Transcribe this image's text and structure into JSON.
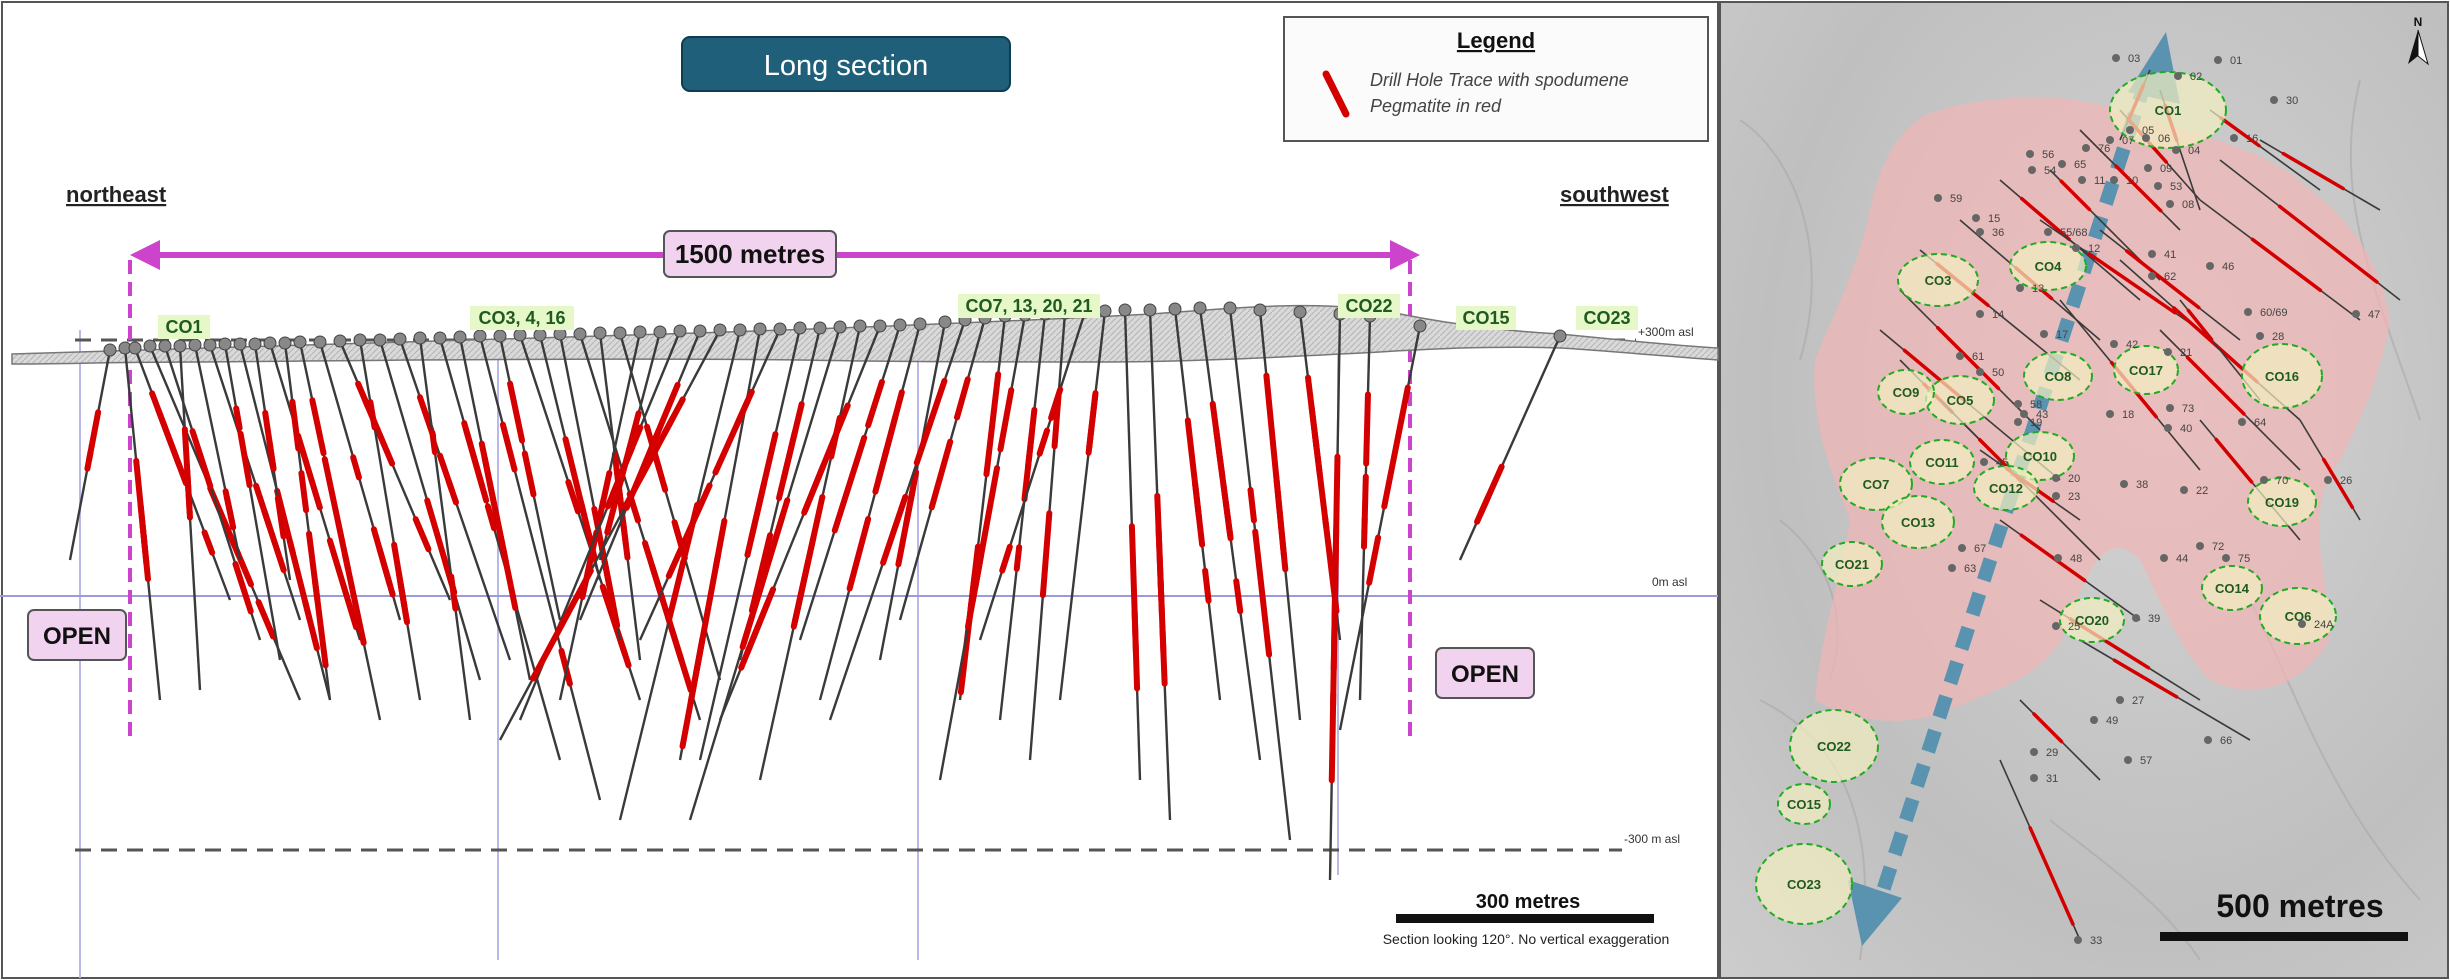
{
  "section": {
    "title": "Long section",
    "legend_title": "Legend",
    "legend_line1": "Drill Hole Trace with spodumene",
    "legend_line2": "Pegmatite in red",
    "dir_left": "northeast",
    "dir_right": "southwest",
    "span_label": "1500  metres",
    "open_left": "OPEN",
    "open_right": "OPEN",
    "level_top": "+300m asl",
    "level_mid": "0m asl",
    "level_bot": "-300 m asl",
    "scale_label": "300 metres",
    "caption": "Section looking 120°.  No vertical exaggeration",
    "zones": [
      "CO1",
      "CO3, 4, 16",
      "CO7, 13, 20, 21",
      "CO22",
      "CO15",
      "CO23"
    ]
  },
  "map": {
    "north_label": "N",
    "scale_label": "500 metres",
    "zones": [
      "CO1",
      "CO3",
      "CO4",
      "CO5",
      "CO6",
      "CO7",
      "CO8",
      "CO9",
      "CO10",
      "CO11",
      "CO12",
      "CO13",
      "CO14",
      "CO15",
      "CO16",
      "CO17",
      "CO19",
      "CO20",
      "CO21",
      "CO22",
      "CO23"
    ],
    "holes": [
      "01",
      "02",
      "03",
      "04",
      "05",
      "06",
      "07",
      "08",
      "09",
      "10",
      "11",
      "12",
      "13",
      "14",
      "15",
      "16",
      "17",
      "18",
      "19",
      "20",
      "21",
      "22",
      "23",
      "24A",
      "25",
      "26",
      "27",
      "28",
      "29",
      "30",
      "31",
      "33",
      "36",
      "38",
      "39",
      "40",
      "41",
      "42",
      "43",
      "44",
      "45",
      "46",
      "47",
      "48",
      "49",
      "50",
      "53",
      "54",
      "55/68",
      "56",
      "57",
      "58",
      "59",
      "60/69",
      "61",
      "62",
      "63",
      "64",
      "65",
      "66",
      "67",
      "70",
      "72",
      "73",
      "75",
      "76"
    ]
  },
  "colors": {
    "pegmatite": "#d40000",
    "title_bg": "#1f5f7a",
    "magenta": "#cc44cc",
    "open_bg": "#f1d3ef",
    "zone_green": "#22aa22",
    "zone_label_bg": "#e6f7c8",
    "pink_area": "#f2b5b5",
    "arrow_blue": "#5a93b0"
  }
}
